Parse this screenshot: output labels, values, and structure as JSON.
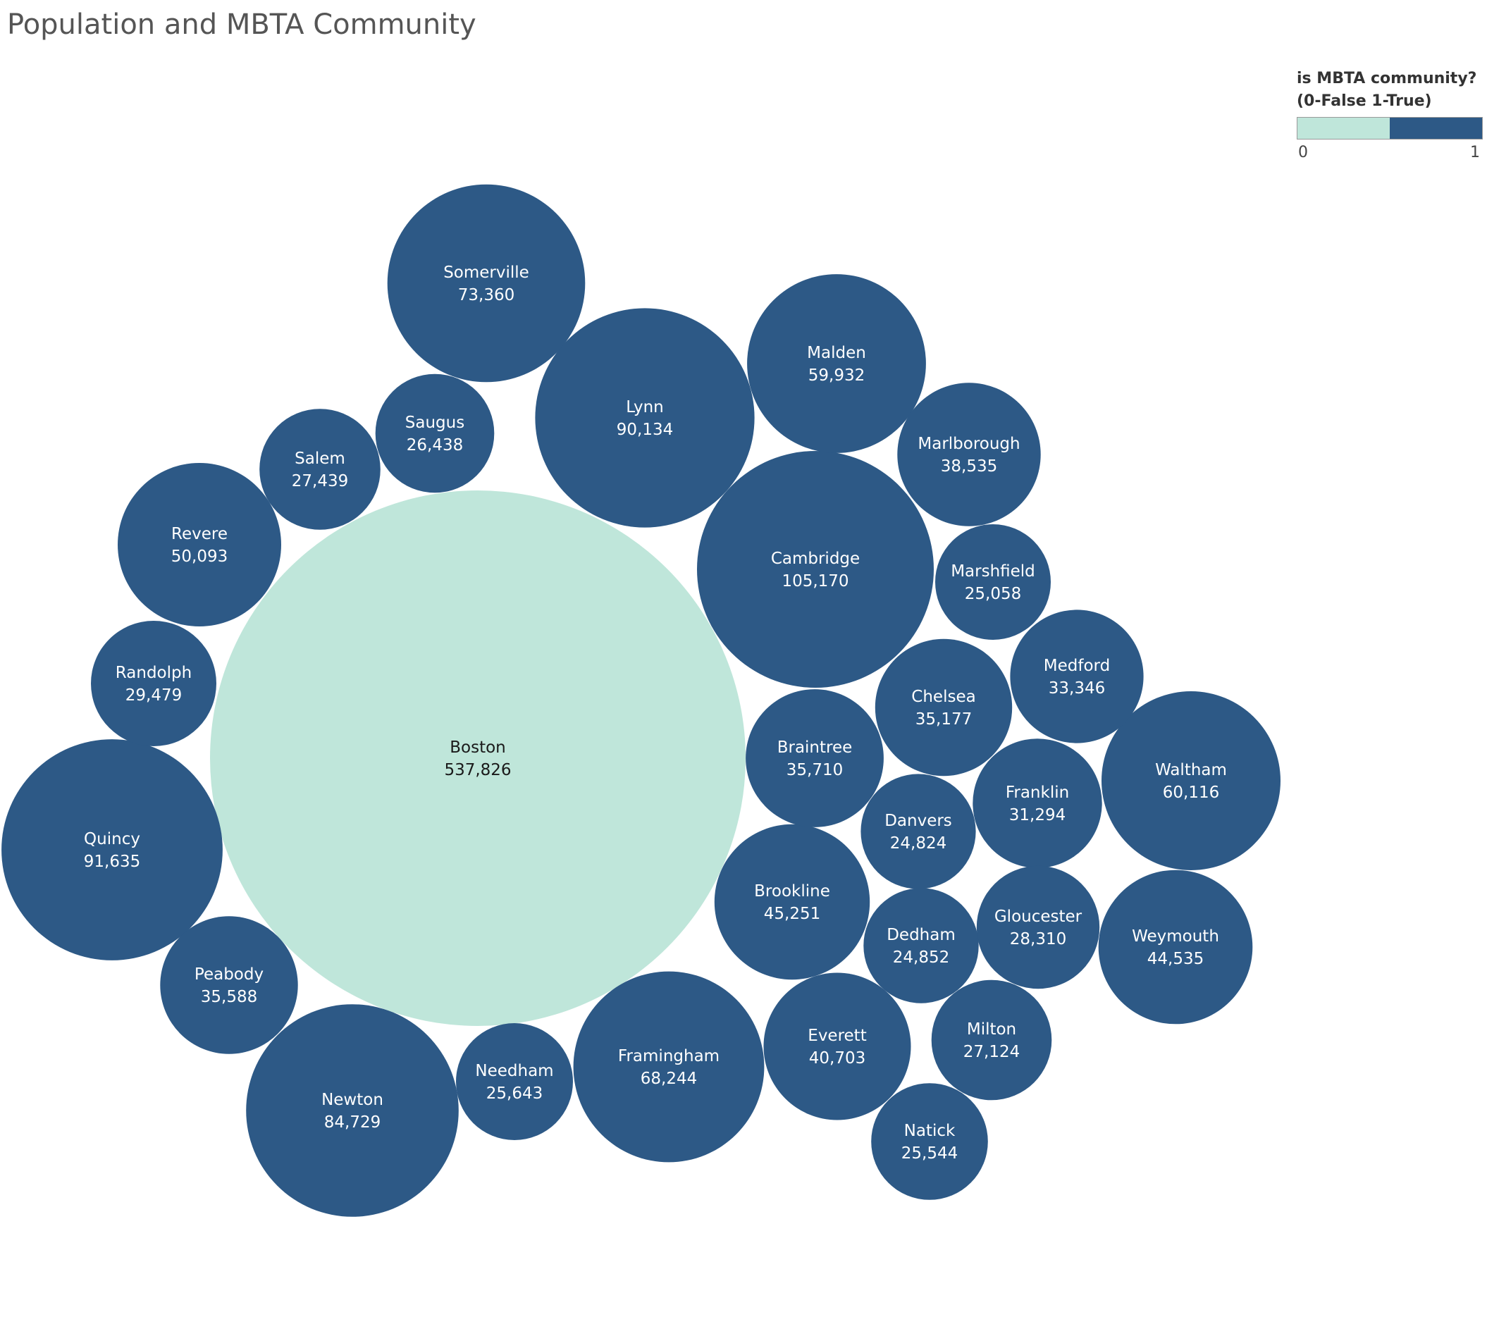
{
  "chart_data": {
    "type": "bubble",
    "title": "Population and MBTA Community",
    "legend": {
      "title_line1": "is MBTA community?",
      "title_line2": "(0-False 1-True)",
      "min_label": "0",
      "max_label": "1",
      "placement": "top-right"
    },
    "colors": {
      "false": "#bfe6da",
      "true": "#2d5986",
      "label_on_true": "#ffffff",
      "label_on_false": "#1a1a1a"
    },
    "points": [
      {
        "name": "Boston",
        "value_label": "537,826",
        "population": 537826,
        "mbta": 0
      },
      {
        "name": "Cambridge",
        "value_label": "105,170",
        "population": 105170,
        "mbta": 1
      },
      {
        "name": "Quincy",
        "value_label": "91,635",
        "population": 91635,
        "mbta": 1
      },
      {
        "name": "Lynn",
        "value_label": "90,134",
        "population": 90134,
        "mbta": 1
      },
      {
        "name": "Newton",
        "value_label": "84,729",
        "population": 84729,
        "mbta": 1
      },
      {
        "name": "Somerville",
        "value_label": "73,360",
        "population": 73360,
        "mbta": 1
      },
      {
        "name": "Framingham",
        "value_label": "68,244",
        "population": 68244,
        "mbta": 1
      },
      {
        "name": "Waltham",
        "value_label": "60,116",
        "population": 60116,
        "mbta": 1
      },
      {
        "name": "Malden",
        "value_label": "59,932",
        "population": 59932,
        "mbta": 1
      },
      {
        "name": "Revere",
        "value_label": "50,093",
        "population": 50093,
        "mbta": 1
      },
      {
        "name": "Brookline",
        "value_label": "45,251",
        "population": 45251,
        "mbta": 1
      },
      {
        "name": "Weymouth",
        "value_label": "44,535",
        "population": 44535,
        "mbta": 1
      },
      {
        "name": "Everett",
        "value_label": "40,703",
        "population": 40703,
        "mbta": 1
      },
      {
        "name": "Marlborough",
        "value_label": "38,535",
        "population": 38535,
        "mbta": 1
      },
      {
        "name": "Braintree",
        "value_label": "35,710",
        "population": 35710,
        "mbta": 1
      },
      {
        "name": "Peabody",
        "value_label": "35,588",
        "population": 35588,
        "mbta": 1
      },
      {
        "name": "Chelsea",
        "value_label": "35,177",
        "population": 35177,
        "mbta": 1
      },
      {
        "name": "Medford",
        "value_label": "33,346",
        "population": 33346,
        "mbta": 1
      },
      {
        "name": "Franklin",
        "value_label": "31,294",
        "population": 31294,
        "mbta": 1
      },
      {
        "name": "Randolph",
        "value_label": "29,479",
        "population": 29479,
        "mbta": 1
      },
      {
        "name": "Gloucester",
        "value_label": "28,310",
        "population": 28310,
        "mbta": 1
      },
      {
        "name": "Salem",
        "value_label": "27,439",
        "population": 27439,
        "mbta": 1
      },
      {
        "name": "Milton",
        "value_label": "27,124",
        "population": 27124,
        "mbta": 1
      },
      {
        "name": "Saugus",
        "value_label": "26,438",
        "population": 26438,
        "mbta": 1
      },
      {
        "name": "Needham",
        "value_label": "25,643",
        "population": 25643,
        "mbta": 1
      },
      {
        "name": "Natick",
        "value_label": "25,544",
        "population": 25544,
        "mbta": 1
      },
      {
        "name": "Marshfield",
        "value_label": "25,058",
        "population": 25058,
        "mbta": 1
      },
      {
        "name": "Dedham",
        "value_label": "24,852",
        "population": 24852,
        "mbta": 1
      },
      {
        "name": "Danvers",
        "value_label": "24,824",
        "population": 24824,
        "mbta": 1
      }
    ]
  }
}
